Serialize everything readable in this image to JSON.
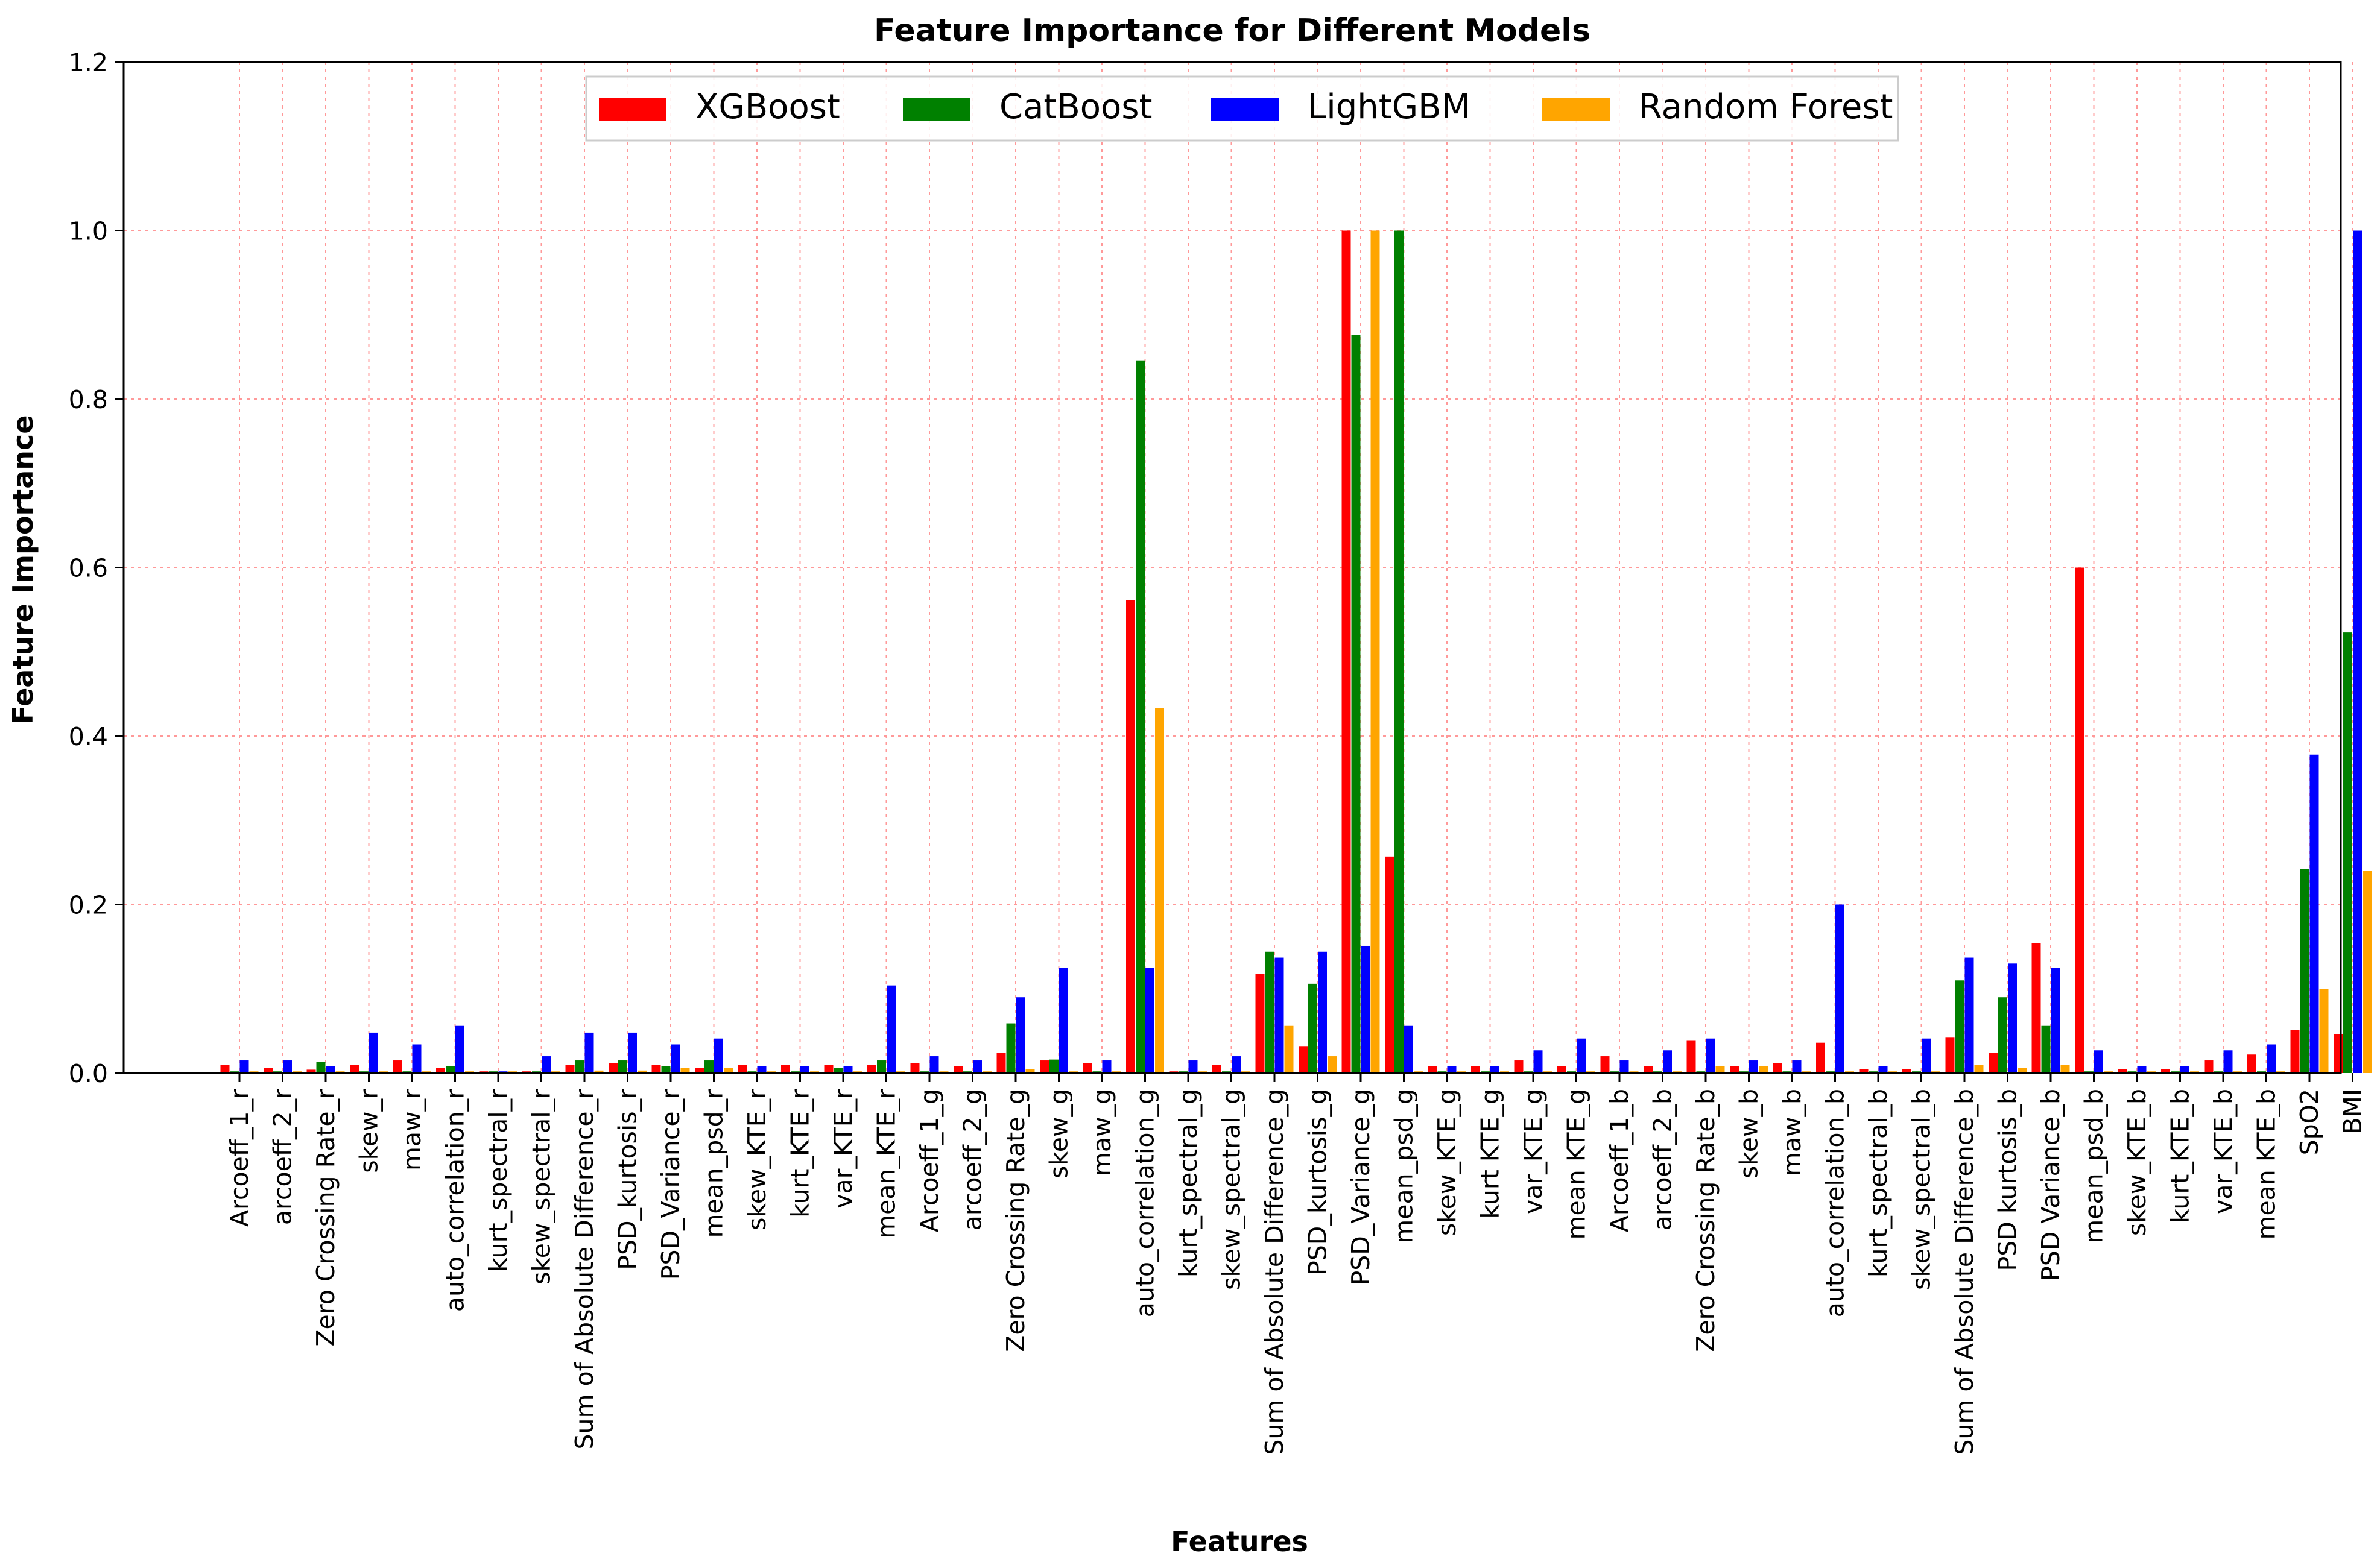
{
  "chart_data": {
    "type": "bar",
    "title": "Feature Importance for Different Models",
    "xlabel": "Features",
    "ylabel": "Feature Importance",
    "ylim": [
      0,
      1.2
    ],
    "yticks": [
      0.0,
      0.2,
      0.4,
      0.6,
      0.8,
      1.0,
      1.2
    ],
    "ytick_labels": [
      "0.0",
      "0.2",
      "0.4",
      "0.6",
      "0.8",
      "1.0",
      "1.2"
    ],
    "grid": true,
    "legend_position": "top-center",
    "categories": [
      "Arcoeff_1_r",
      "arcoeff_2_r",
      "Zero Crossing Rate_r",
      "skew_r",
      "maw_r",
      "auto_correlation_r",
      "kurt_spectral_r",
      "skew_spectral_r",
      "Sum of Absolute Difference_r",
      "PSD_kurtosis_r",
      "PSD_Variance_r",
      "mean_psd_r",
      "skew_KTE_r",
      "kurt_KTE_r",
      "var_KTE_r",
      "mean_KTE_r",
      "Arcoeff_1_g",
      "arcoeff_2_g",
      "Zero Crossing Rate_g",
      "skew_g",
      "maw_g",
      "auto_correlation_g",
      "kurt_spectral_g",
      "skew_spectral_g",
      "Sum of Absolute Difference_g",
      "PSD_kurtosis_g",
      "PSD_Variance_g",
      "mean_psd_g",
      "skew_KTE_g",
      "kurt KTE_g",
      "var_KTE_g",
      "mean KTE_g",
      "Arcoeff_1_b",
      "arcoeff_2_b",
      "Zero Crossing Rate_b",
      "skew_b",
      "maw_b",
      "auto_correlation_b",
      "kurt_spectral_b",
      "skew_spectral_b",
      "Sum of Absolute Difference_b",
      "PSD kurtosis_b",
      "PSD Variance_b",
      "mean_psd_b",
      "skew_KTE_b",
      "kurt_KTE_b",
      "var_KTE_b",
      "mean KTE_b",
      "SpO2",
      "BMI"
    ],
    "series": [
      {
        "name": "XGBoost",
        "color": "#ff0000",
        "values": [
          0.01,
          0.006,
          0.004,
          0.01,
          0.015,
          0.006,
          0.002,
          0.002,
          0.01,
          0.012,
          0.01,
          0.006,
          0.01,
          0.01,
          0.01,
          0.01,
          0.012,
          0.008,
          0.024,
          0.015,
          0.012,
          0.561,
          0.002,
          0.01,
          0.118,
          0.032,
          1.0,
          0.257,
          0.008,
          0.008,
          0.015,
          0.008,
          0.02,
          0.008,
          0.039,
          0.008,
          0.012,
          0.036,
          0.005,
          0.005,
          0.042,
          0.024,
          0.154,
          0.6,
          0.005,
          0.005,
          0.015,
          0.022,
          0.051,
          0.046
        ]
      },
      {
        "name": "CatBoost",
        "color": "#008000",
        "values": [
          0.002,
          0.002,
          0.013,
          0.002,
          0.002,
          0.008,
          0.002,
          0.002,
          0.015,
          0.015,
          0.008,
          0.015,
          0.002,
          0.002,
          0.006,
          0.015,
          0.002,
          0.002,
          0.059,
          0.016,
          0.002,
          0.846,
          0.002,
          0.002,
          0.144,
          0.106,
          0.876,
          1.0,
          0.002,
          0.002,
          0.002,
          0.002,
          0.002,
          0.002,
          0.002,
          0.002,
          0.002,
          0.002,
          0.002,
          0.002,
          0.11,
          0.09,
          0.056,
          0.002,
          0.002,
          0.002,
          0.002,
          0.002,
          0.242,
          0.523
        ]
      },
      {
        "name": "LightGBM",
        "color": "#0000ff",
        "values": [
          0.015,
          0.015,
          0.008,
          0.048,
          0.034,
          0.056,
          0.002,
          0.02,
          0.048,
          0.048,
          0.034,
          0.041,
          0.008,
          0.008,
          0.008,
          0.104,
          0.02,
          0.015,
          0.09,
          0.125,
          0.015,
          0.125,
          0.015,
          0.02,
          0.137,
          0.144,
          0.151,
          0.056,
          0.008,
          0.008,
          0.027,
          0.041,
          0.015,
          0.027,
          0.041,
          0.015,
          0.015,
          0.2,
          0.008,
          0.041,
          0.137,
          0.13,
          0.125,
          0.027,
          0.008,
          0.008,
          0.027,
          0.034,
          0.378,
          1.0
        ]
      },
      {
        "name": "Random Forest",
        "color": "#ffa500",
        "values": [
          0.002,
          0.002,
          0.002,
          0.002,
          0.002,
          0.002,
          0.002,
          0.002,
          0.003,
          0.003,
          0.006,
          0.006,
          0.002,
          0.002,
          0.002,
          0.002,
          0.002,
          0.002,
          0.005,
          0.002,
          0.002,
          0.433,
          0.002,
          0.002,
          0.056,
          0.02,
          1.0,
          0.002,
          0.002,
          0.002,
          0.002,
          0.002,
          0.002,
          0.002,
          0.008,
          0.008,
          0.002,
          0.002,
          0.002,
          0.002,
          0.01,
          0.006,
          0.01,
          0.002,
          0.002,
          0.002,
          0.002,
          0.002,
          0.1,
          0.24
        ]
      }
    ]
  }
}
